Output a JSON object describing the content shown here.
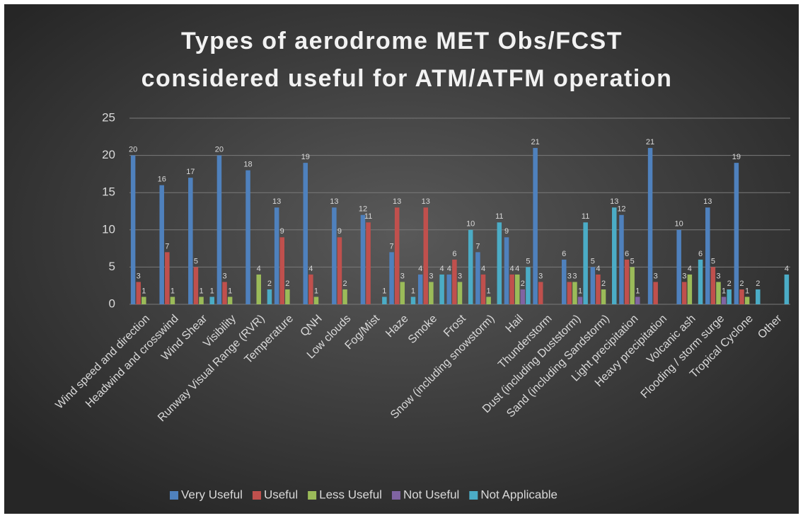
{
  "chart_data": {
    "type": "bar",
    "title": [
      "Types of aerodrome MET Obs/FCST",
      "considered useful for ATM/ATFM operation"
    ],
    "categories": [
      "Wind speed and direction",
      "Headwind and crosswind",
      "Wind Shear",
      "Visibility",
      "Runway Visual Range (RVR)",
      "Temperature",
      "QNH",
      "Low clouds",
      "Fog/Mist",
      "Haze",
      "Smoke",
      "Frost",
      "Snow (including snowstorm)",
      "Hail",
      "Thunderstorm",
      "Dust (including Duststorm)",
      "Sand (including Sandstorm)",
      "Light precipitation",
      "Heavy precipitation",
      "Volcanic ash",
      "Flooding / storm surge",
      "Tropical Cyclone",
      "Other"
    ],
    "series": [
      {
        "name": "Very Useful",
        "color": "#4f81bd",
        "values": [
          20,
          16,
          17,
          20,
          18,
          13,
          19,
          13,
          12,
          7,
          4,
          4,
          7,
          9,
          21,
          6,
          5,
          12,
          21,
          10,
          13,
          19,
          0
        ]
      },
      {
        "name": "Useful",
        "color": "#c0504d",
        "values": [
          3,
          7,
          5,
          3,
          0,
          9,
          4,
          9,
          11,
          13,
          13,
          6,
          4,
          4,
          3,
          3,
          4,
          6,
          3,
          3,
          5,
          2,
          0
        ]
      },
      {
        "name": "Less Useful",
        "color": "#9bbb59",
        "values": [
          1,
          1,
          1,
          1,
          4,
          2,
          1,
          2,
          0,
          3,
          3,
          3,
          1,
          4,
          0,
          3,
          2,
          5,
          0,
          4,
          3,
          1,
          0
        ]
      },
      {
        "name": "Not Useful",
        "color": "#8064a2",
        "values": [
          0,
          0,
          0,
          0,
          0,
          0,
          0,
          0,
          0,
          0,
          0,
          0,
          0,
          2,
          0,
          1,
          0,
          1,
          0,
          0,
          1,
          0,
          0
        ]
      },
      {
        "name": "Not Applicable",
        "color": "#4bacc6",
        "values": [
          0,
          0,
          1,
          0,
          2,
          0,
          0,
          0,
          1,
          1,
          4,
          10,
          11,
          5,
          0,
          11,
          13,
          0,
          0,
          6,
          2,
          2,
          4
        ]
      }
    ],
    "ylim": [
      0,
      25
    ],
    "yticks": [
      0,
      5,
      10,
      15,
      20,
      25
    ],
    "grid": true,
    "legend": "bottom"
  }
}
